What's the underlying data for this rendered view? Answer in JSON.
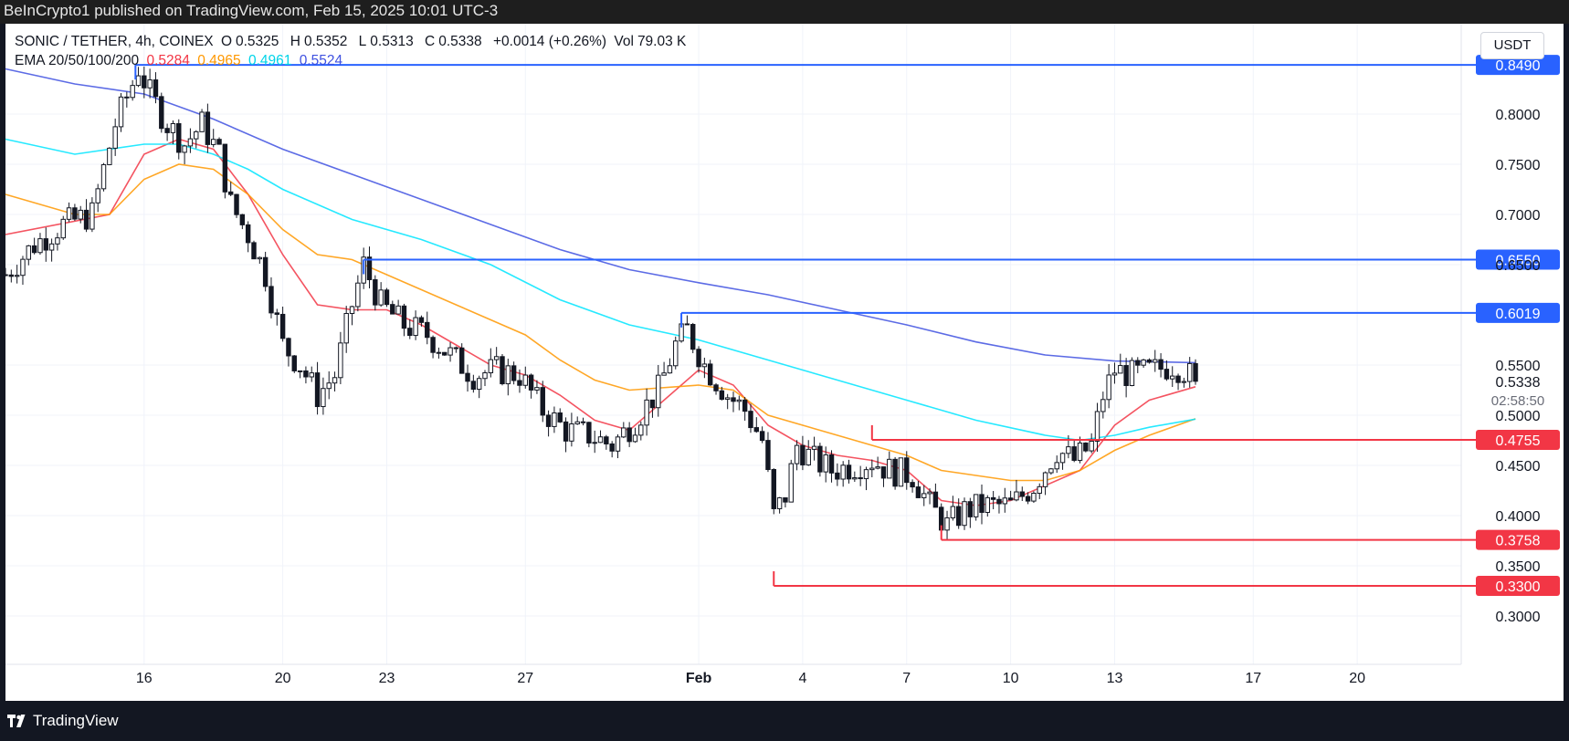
{
  "header": {
    "publisher": "BeInCrypto1 published on TradingView.com, Feb 15, 2025 10:01 UTC-3"
  },
  "legend": {
    "symbol": "SONIC / TETHER, 4h, COINEX",
    "o_label": "O",
    "o": "0.5325",
    "h_label": "H",
    "h": "0.5352",
    "l_label": "L",
    "l": "0.5313",
    "c_label": "C",
    "c": "0.5338",
    "change": "+0.0014 (+0.26%)",
    "vol_label": "Vol",
    "vol": "79.03 K",
    "ema_label": "EMA 20/50/100/200",
    "ema20": "0.5284",
    "ema50": "0.4965",
    "ema100": "0.4961",
    "ema200": "0.5524"
  },
  "currency": "USDT",
  "countdown": "02:58:50",
  "footer": {
    "brand": "TradingView"
  },
  "colors": {
    "ema20": "#f23645",
    "ema50": "#ff9800",
    "ema100": "#00e5ff",
    "ema200": "#3f51e0",
    "resistance": "#2962ff",
    "support": "#f23645",
    "candle": "#131722"
  },
  "chart_data": {
    "type": "candlestick",
    "x_ticks": [
      "16",
      "20",
      "23",
      "27",
      "Feb",
      "4",
      "7",
      "10",
      "13",
      "17",
      "20"
    ],
    "y_ticks": [
      "0.8000",
      "0.7500",
      "0.7000",
      "0.6500",
      "0.5500",
      "0.5000",
      "0.4500",
      "0.4000",
      "0.3500",
      "0.3000"
    ],
    "ylim": [
      0.27,
      0.89
    ],
    "xlim": [
      "Jan 12",
      "Feb 23"
    ],
    "last_price": "0.5338",
    "levels": [
      {
        "value": 0.849,
        "label": "0.8490",
        "kind": "resistance",
        "from": "Jan 15 18:00"
      },
      {
        "value": 0.655,
        "label": "0.6550",
        "kind": "resistance",
        "from": "Jan 22 08:00"
      },
      {
        "value": 0.6019,
        "label": "0.6019",
        "kind": "resistance",
        "from": "Jan 31 12:00"
      },
      {
        "value": 0.4755,
        "label": "0.4755",
        "kind": "support",
        "from": "Feb 6 00:00"
      },
      {
        "value": 0.3758,
        "label": "0.3758",
        "kind": "support",
        "from": "Feb 8 00:00"
      },
      {
        "value": 0.33,
        "label": "0.3300",
        "kind": "support",
        "from": "Feb 3 04:00"
      }
    ],
    "price_path": [
      [
        "Jan 12 00:00",
        0.64
      ],
      [
        "Jan 12 20:00",
        0.67
      ],
      [
        "Jan 13 16:00",
        0.69
      ],
      [
        "Jan 14 12:00",
        0.7
      ],
      [
        "Jan 15 04:00",
        0.79
      ],
      [
        "Jan 15 16:00",
        0.83
      ],
      [
        "Jan 15 20:00",
        0.846
      ],
      [
        "Jan 16 04:00",
        0.82
      ],
      [
        "Jan 16 16:00",
        0.79
      ],
      [
        "Jan 17 04:00",
        0.77
      ],
      [
        "Jan 17 16:00",
        0.79
      ],
      [
        "Jan 18 04:00",
        0.76
      ],
      [
        "Jan 18 12:00",
        0.71
      ],
      [
        "Jan 19 00:00",
        0.68
      ],
      [
        "Jan 19 12:00",
        0.64
      ],
      [
        "Jan 20 00:00",
        0.57
      ],
      [
        "Jan 20 12:00",
        0.55
      ],
      [
        "Jan 21 00:00",
        0.52
      ],
      [
        "Jan 21 12:00",
        0.54
      ],
      [
        "Jan 22 00:00",
        0.61
      ],
      [
        "Jan 22 08:00",
        0.65
      ],
      [
        "Jan 22 20:00",
        0.61
      ],
      [
        "Jan 23 12:00",
        0.59
      ],
      [
        "Jan 24 04:00",
        0.58
      ],
      [
        "Jan 24 20:00",
        0.56
      ],
      [
        "Jan 25 12:00",
        0.54
      ],
      [
        "Jan 26 04:00",
        0.545
      ],
      [
        "Jan 26 20:00",
        0.54
      ],
      [
        "Jan 27 12:00",
        0.505
      ],
      [
        "Jan 28 04:00",
        0.485
      ],
      [
        "Jan 28 20:00",
        0.48
      ],
      [
        "Jan 29 12:00",
        0.47
      ],
      [
        "Jan 30 04:00",
        0.495
      ],
      [
        "Jan 30 20:00",
        0.525
      ],
      [
        "Jan 31 08:00",
        0.57
      ],
      [
        "Jan 31 16:00",
        0.585
      ],
      [
        "Feb 1 04:00",
        0.55
      ],
      [
        "Feb 1 20:00",
        0.52
      ],
      [
        "Feb 2 08:00",
        0.505
      ],
      [
        "Feb 2 20:00",
        0.475
      ],
      [
        "Feb 3 04:00",
        0.4
      ],
      [
        "Feb 3 12:00",
        0.42
      ],
      [
        "Feb 3 20:00",
        0.47
      ],
      [
        "Feb 4 08:00",
        0.455
      ],
      [
        "Feb 4 20:00",
        0.445
      ],
      [
        "Feb 5 12:00",
        0.45
      ],
      [
        "Feb 6 00:00",
        0.455
      ],
      [
        "Feb 6 12:00",
        0.445
      ],
      [
        "Feb 7 04:00",
        0.44
      ],
      [
        "Feb 7 16:00",
        0.41
      ],
      [
        "Feb 8 04:00",
        0.39
      ],
      [
        "Feb 8 16:00",
        0.405
      ],
      [
        "Feb 9 08:00",
        0.41
      ],
      [
        "Feb 10 00:00",
        0.41
      ],
      [
        "Feb 10 16:00",
        0.43
      ],
      [
        "Feb 11 08:00",
        0.465
      ],
      [
        "Feb 11 20:00",
        0.455
      ],
      [
        "Feb 12 08:00",
        0.47
      ],
      [
        "Feb 12 16:00",
        0.52
      ],
      [
        "Feb 13 00:00",
        0.545
      ],
      [
        "Feb 13 12:00",
        0.54
      ],
      [
        "Feb 14 04:00",
        0.545
      ],
      [
        "Feb 14 16:00",
        0.55
      ],
      [
        "Feb 15 00:00",
        0.545
      ],
      [
        "Feb 15 08:00",
        0.5338
      ]
    ],
    "ema_paths": [
      {
        "name": "EMA 20",
        "points": [
          [
            "Jan 12 00:00",
            0.68
          ],
          [
            "Jan 15 00:00",
            0.7
          ],
          [
            "Jan 16 00:00",
            0.76
          ],
          [
            "Jan 17 00:00",
            0.775
          ],
          [
            "Jan 18 00:00",
            0.765
          ],
          [
            "Jan 19 00:00",
            0.72
          ],
          [
            "Jan 20 00:00",
            0.66
          ],
          [
            "Jan 21 00:00",
            0.61
          ],
          [
            "Jan 22 00:00",
            0.605
          ],
          [
            "Jan 23 00:00",
            0.605
          ],
          [
            "Jan 24 00:00",
            0.59
          ],
          [
            "Jan 25 00:00",
            0.57
          ],
          [
            "Jan 26 00:00",
            0.55
          ],
          [
            "Jan 27 00:00",
            0.54
          ],
          [
            "Jan 28 00:00",
            0.52
          ],
          [
            "Jan 29 00:00",
            0.495
          ],
          [
            "Jan 30 00:00",
            0.485
          ],
          [
            "Jan 31 00:00",
            0.515
          ],
          [
            "Feb 1 00:00",
            0.545
          ],
          [
            "Feb 2 00:00",
            0.53
          ],
          [
            "Feb 3 00:00",
            0.49
          ],
          [
            "Feb 4 00:00",
            0.47
          ],
          [
            "Feb 5 00:00",
            0.46
          ],
          [
            "Feb 6 00:00",
            0.455
          ],
          [
            "Feb 7 00:00",
            0.445
          ],
          [
            "Feb 8 00:00",
            0.415
          ],
          [
            "Feb 9 00:00",
            0.41
          ],
          [
            "Feb 10 00:00",
            0.415
          ],
          [
            "Feb 11 00:00",
            0.43
          ],
          [
            "Feb 12 00:00",
            0.445
          ],
          [
            "Feb 13 00:00",
            0.49
          ],
          [
            "Feb 14 00:00",
            0.515
          ],
          [
            "Feb 15 08:00",
            0.5284
          ]
        ]
      },
      {
        "name": "EMA 50",
        "points": [
          [
            "Jan 12 00:00",
            0.72
          ],
          [
            "Jan 14 00:00",
            0.7
          ],
          [
            "Jan 15 00:00",
            0.7
          ],
          [
            "Jan 16 00:00",
            0.735
          ],
          [
            "Jan 17 00:00",
            0.75
          ],
          [
            "Jan 18 00:00",
            0.745
          ],
          [
            "Jan 19 00:00",
            0.72
          ],
          [
            "Jan 20 00:00",
            0.685
          ],
          [
            "Jan 21 00:00",
            0.66
          ],
          [
            "Jan 22 00:00",
            0.655
          ],
          [
            "Jan 23 00:00",
            0.64
          ],
          [
            "Jan 25 00:00",
            0.61
          ],
          [
            "Jan 27 00:00",
            0.58
          ],
          [
            "Jan 28 00:00",
            0.555
          ],
          [
            "Jan 29 00:00",
            0.535
          ],
          [
            "Jan 30 00:00",
            0.525
          ],
          [
            "Feb 1 00:00",
            0.53
          ],
          [
            "Feb 2 00:00",
            0.525
          ],
          [
            "Feb 3 00:00",
            0.5
          ],
          [
            "Feb 5 00:00",
            0.48
          ],
          [
            "Feb 7 00:00",
            0.46
          ],
          [
            "Feb 8 00:00",
            0.445
          ],
          [
            "Feb 10 00:00",
            0.435
          ],
          [
            "Feb 11 00:00",
            0.435
          ],
          [
            "Feb 12 00:00",
            0.445
          ],
          [
            "Feb 13 00:00",
            0.465
          ],
          [
            "Feb 14 00:00",
            0.48
          ],
          [
            "Feb 15 08:00",
            0.4965
          ]
        ]
      },
      {
        "name": "EMA 100",
        "points": [
          [
            "Jan 12 00:00",
            0.775
          ],
          [
            "Jan 14 00:00",
            0.76
          ],
          [
            "Jan 16 00:00",
            0.77
          ],
          [
            "Jan 17 00:00",
            0.77
          ],
          [
            "Jan 18 00:00",
            0.76
          ],
          [
            "Jan 19 00:00",
            0.745
          ],
          [
            "Jan 20 00:00",
            0.725
          ],
          [
            "Jan 22 00:00",
            0.695
          ],
          [
            "Jan 24 00:00",
            0.675
          ],
          [
            "Jan 26 00:00",
            0.65
          ],
          [
            "Jan 28 00:00",
            0.615
          ],
          [
            "Jan 30 00:00",
            0.59
          ],
          [
            "Feb 1 00:00",
            0.575
          ],
          [
            "Feb 3 00:00",
            0.555
          ],
          [
            "Feb 5 00:00",
            0.535
          ],
          [
            "Feb 7 00:00",
            0.515
          ],
          [
            "Feb 9 00:00",
            0.495
          ],
          [
            "Feb 11 00:00",
            0.48
          ],
          [
            "Feb 12 00:00",
            0.475
          ],
          [
            "Feb 13 00:00",
            0.48
          ],
          [
            "Feb 14 00:00",
            0.488
          ],
          [
            "Feb 15 08:00",
            0.4961
          ]
        ]
      },
      {
        "name": "EMA 200",
        "points": [
          [
            "Jan 12 00:00",
            0.845
          ],
          [
            "Jan 14 00:00",
            0.83
          ],
          [
            "Jan 16 00:00",
            0.82
          ],
          [
            "Jan 18 00:00",
            0.795
          ],
          [
            "Jan 20 00:00",
            0.765
          ],
          [
            "Jan 22 00:00",
            0.74
          ],
          [
            "Jan 24 00:00",
            0.715
          ],
          [
            "Jan 26 00:00",
            0.69
          ],
          [
            "Jan 28 00:00",
            0.665
          ],
          [
            "Jan 30 00:00",
            0.645
          ],
          [
            "Feb 1 00:00",
            0.632
          ],
          [
            "Feb 3 00:00",
            0.62
          ],
          [
            "Feb 5 00:00",
            0.605
          ],
          [
            "Feb 7 00:00",
            0.59
          ],
          [
            "Feb 9 00:00",
            0.573
          ],
          [
            "Feb 11 00:00",
            0.56
          ],
          [
            "Feb 13 00:00",
            0.554
          ],
          [
            "Feb 15 08:00",
            0.5524
          ]
        ]
      }
    ]
  }
}
